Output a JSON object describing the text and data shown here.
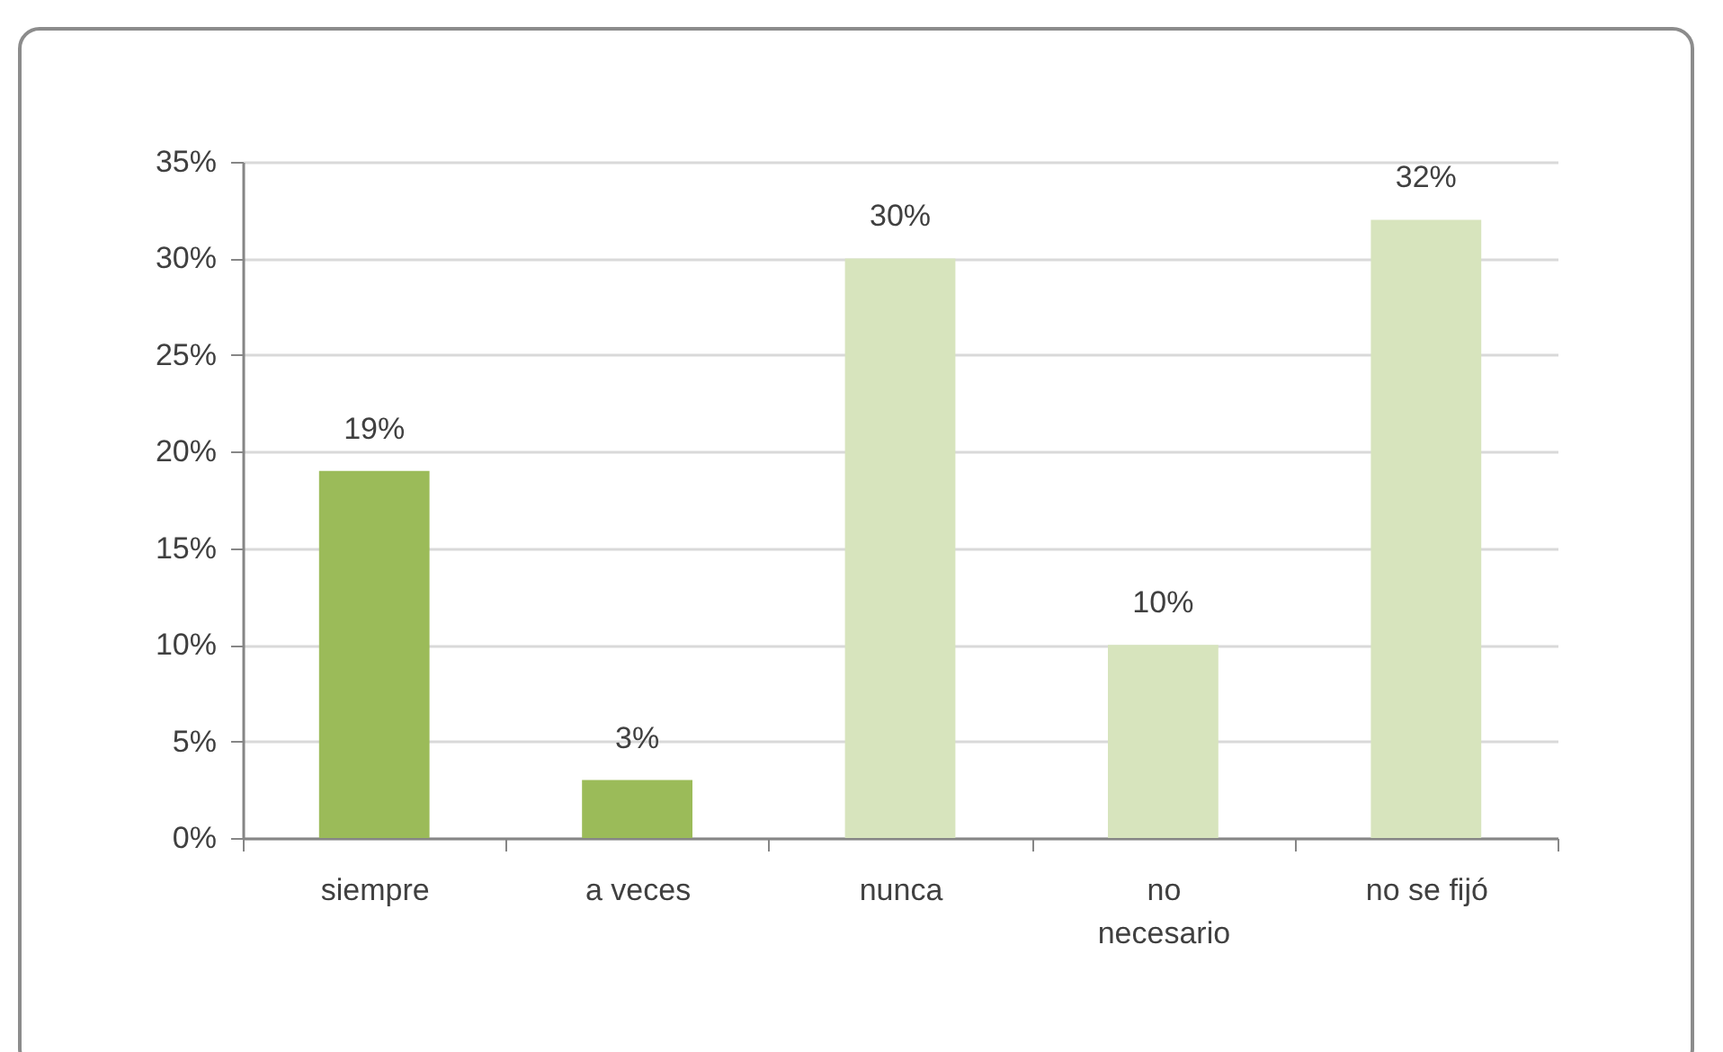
{
  "chart_data": {
    "type": "bar",
    "categories": [
      "siempre",
      "a veces",
      "nunca",
      "no necesario",
      "no se fijó"
    ],
    "values": [
      19,
      3,
      30,
      10,
      32
    ],
    "colors": [
      "#9bbb59",
      "#9bbb59",
      "#d7e4bd",
      "#d7e4bd",
      "#d7e4bd"
    ],
    "value_labels": [
      "19%",
      "3%",
      "30%",
      "10%",
      "32%"
    ],
    "ylim": [
      0,
      35
    ],
    "yticks": [
      {
        "value": 0,
        "label": "0%"
      },
      {
        "value": 5,
        "label": "5%"
      },
      {
        "value": 10,
        "label": "10%"
      },
      {
        "value": 15,
        "label": "15%"
      },
      {
        "value": 20,
        "label": "20%"
      },
      {
        "value": 25,
        "label": "25%"
      },
      {
        "value": 30,
        "label": "30%"
      },
      {
        "value": 35,
        "label": "35%"
      }
    ],
    "grid": "y"
  }
}
